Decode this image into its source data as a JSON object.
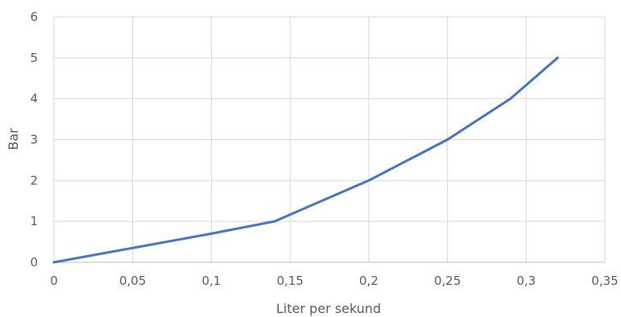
{
  "chart_data": {
    "type": "line",
    "title": "",
    "xlabel": "Liter per sekund",
    "ylabel": "Bar",
    "xlim": [
      0,
      0.35
    ],
    "ylim": [
      0,
      6
    ],
    "x_ticks": [
      "0",
      "0,05",
      "0,1",
      "0,15",
      "0,2",
      "0,25",
      "0,3",
      "0,35"
    ],
    "y_ticks": [
      "0",
      "1",
      "2",
      "3",
      "4",
      "5",
      "6"
    ],
    "grid": true,
    "legend": "none",
    "series": [
      {
        "color": "#4472C4",
        "points": [
          {
            "x": 0,
            "y": 0
          },
          {
            "x": 0.05,
            "y": 0.35
          },
          {
            "x": 0.1,
            "y": 0.7
          },
          {
            "x": 0.14,
            "y": 1.0
          },
          {
            "x": 0.2,
            "y": 2.0
          },
          {
            "x": 0.25,
            "y": 3.0
          },
          {
            "x": 0.29,
            "y": 4.0
          },
          {
            "x": 0.32,
            "y": 5.0
          }
        ]
      }
    ]
  }
}
